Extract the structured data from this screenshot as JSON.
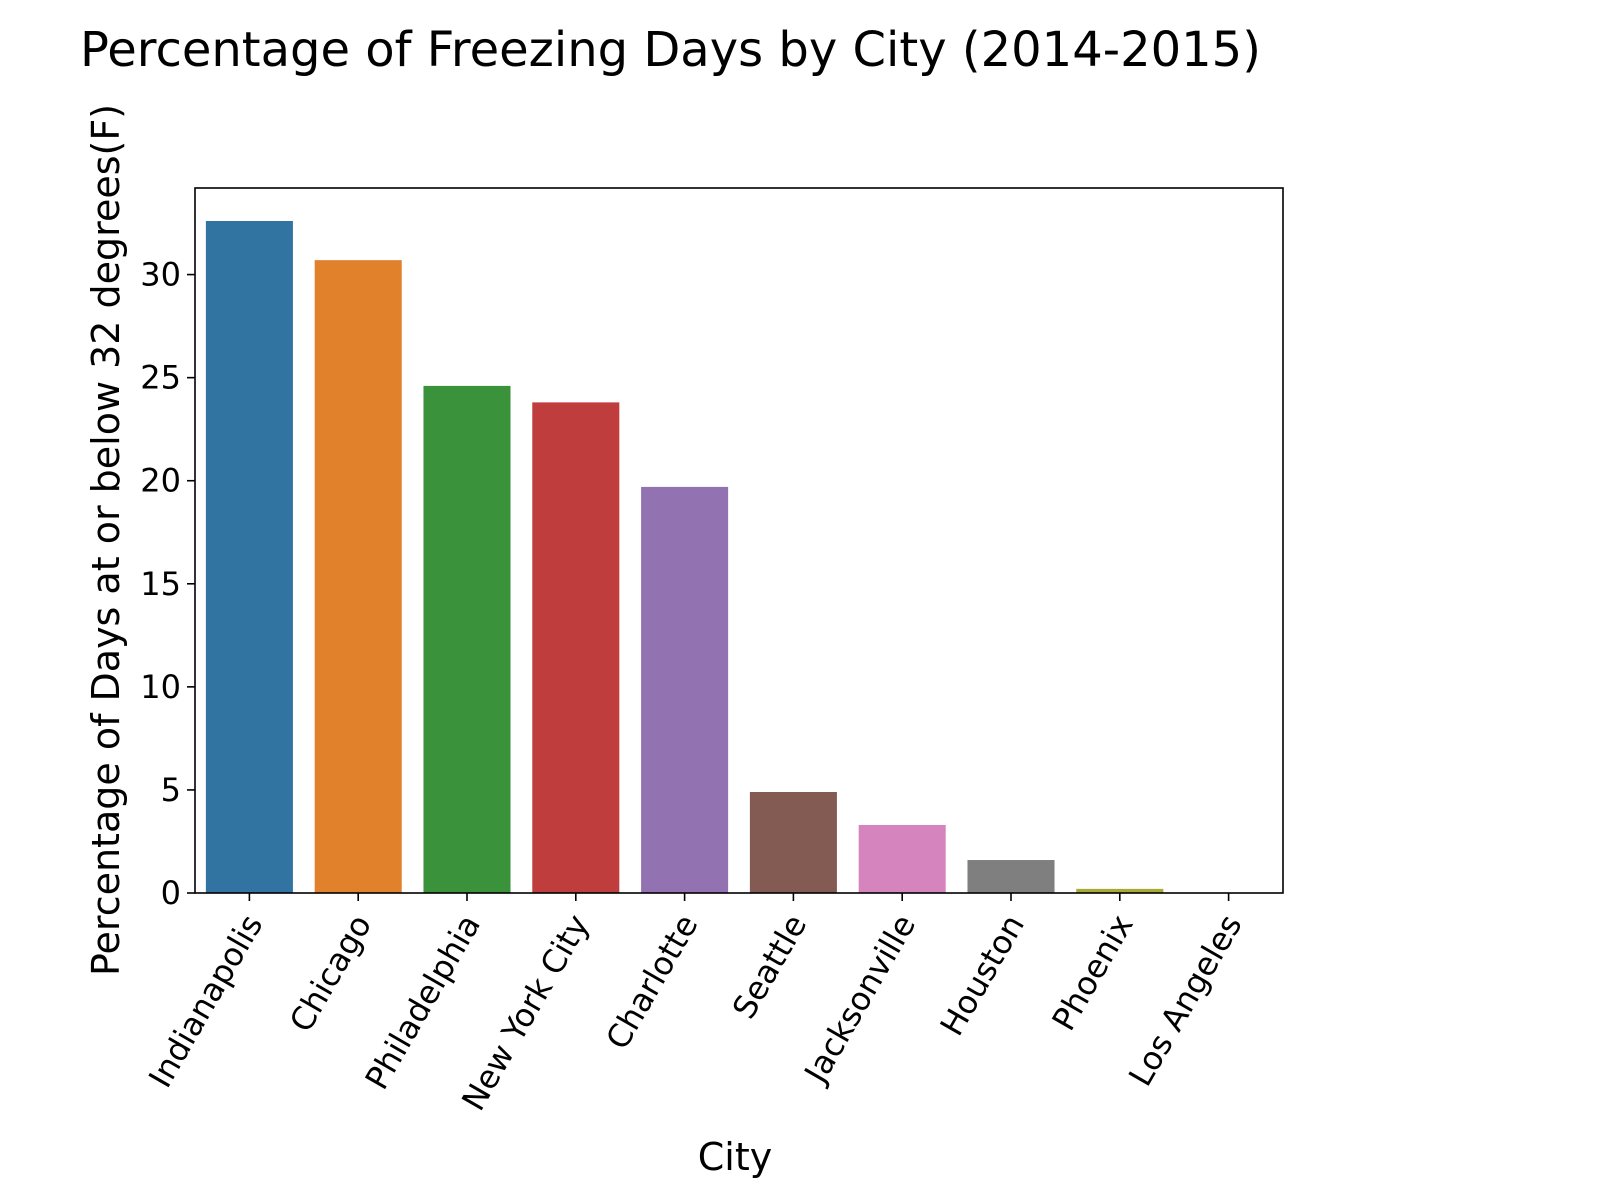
{
  "chart_data": {
    "type": "bar",
    "title": "Percentage of Freezing Days by City (2014-2015)",
    "xlabel": "City",
    "ylabel": "Percentage of Days at or below 32 degrees(F)",
    "categories": [
      "Indianapolis",
      "Chicago",
      "Philadelphia",
      "New York City",
      "Charlotte",
      "Seattle",
      "Jacksonville",
      "Houston",
      "Phoenix",
      "Los Angeles"
    ],
    "values": [
      32.6,
      30.7,
      24.6,
      23.8,
      19.7,
      4.9,
      3.3,
      1.6,
      0.2,
      0.0
    ],
    "colors": [
      "#3274a1",
      "#e1812c",
      "#3a923a",
      "#c03d3e",
      "#9372b2",
      "#845b53",
      "#d684bd",
      "#7f7f7f",
      "#a9aa35",
      "#2eb1c1"
    ],
    "ylim": [
      0,
      34.2
    ],
    "yticks": [
      0,
      5,
      10,
      15,
      20,
      25,
      30
    ],
    "grid": false,
    "legend": "none"
  }
}
